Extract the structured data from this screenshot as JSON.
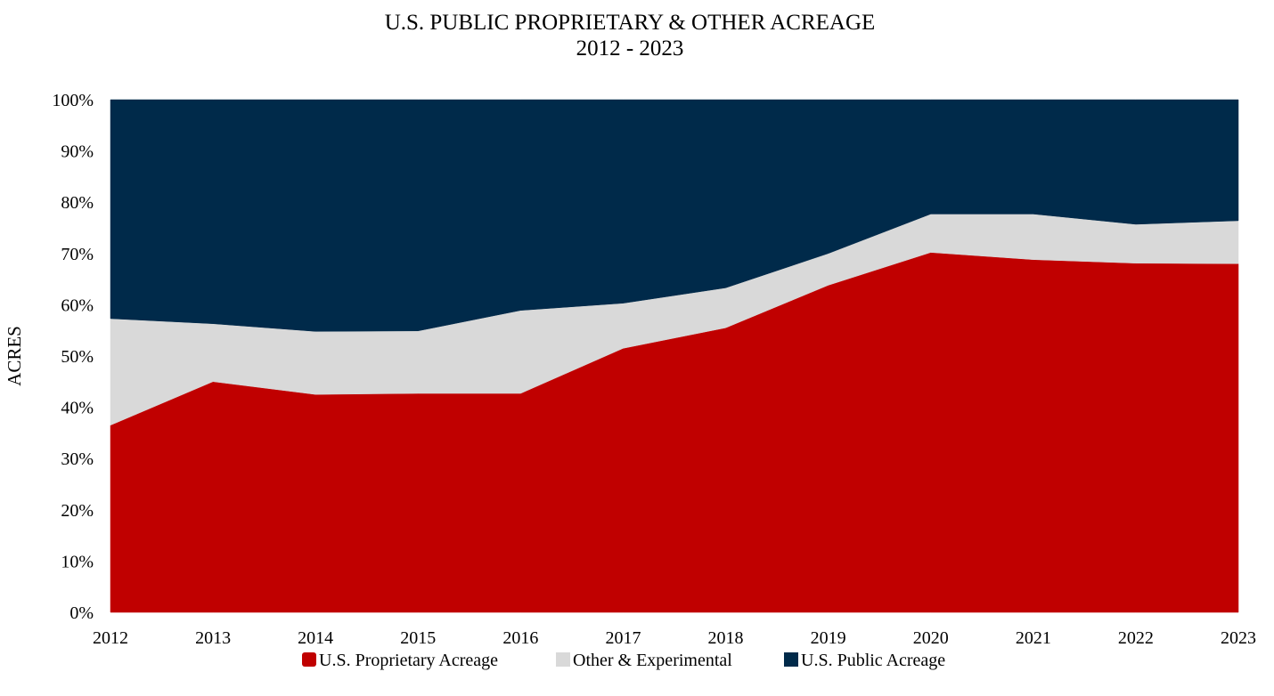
{
  "chart_data": {
    "type": "area",
    "stacked": true,
    "normalized": true,
    "title": "U.S. PUBLIC PROPRIETARY & OTHER ACREAGE",
    "subtitle": "2012 - 2023",
    "xlabel": "",
    "ylabel": "ACRES",
    "x": [
      "2012",
      "2013",
      "2014",
      "2015",
      "2016",
      "2017",
      "2018",
      "2019",
      "2020",
      "2021",
      "2022",
      "2023"
    ],
    "ylim": [
      0,
      100
    ],
    "yticks": [
      0,
      10,
      20,
      30,
      40,
      50,
      60,
      70,
      80,
      90,
      100
    ],
    "ytick_labels": [
      "0%",
      "10%",
      "20%",
      "30%",
      "40%",
      "50%",
      "60%",
      "70%",
      "80%",
      "90%",
      "100%"
    ],
    "series": [
      {
        "name": "U.S. Proprietary Acreage",
        "color": "#c00000",
        "values": [
          36.5,
          45.0,
          42.5,
          42.7,
          42.7,
          51.5,
          55.5,
          63.8,
          70.2,
          68.8,
          68.1,
          68.0
        ]
      },
      {
        "name": "Other & Experimental",
        "color": "#d9d9d9",
        "values": [
          20.8,
          11.3,
          12.3,
          12.2,
          16.2,
          8.8,
          7.8,
          6.2,
          7.5,
          8.9,
          7.6,
          8.4
        ]
      },
      {
        "name": "U.S. Public Acreage",
        "color": "#002a4a",
        "values": [
          42.7,
          43.7,
          45.2,
          45.1,
          41.1,
          39.7,
          36.7,
          30.0,
          22.3,
          22.3,
          24.3,
          23.6
        ]
      }
    ],
    "grid": false,
    "legend_position": "bottom"
  }
}
